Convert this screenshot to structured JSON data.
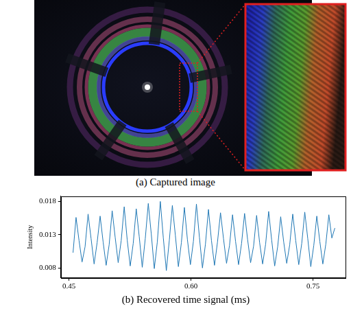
{
  "image": {
    "caption": "(a) Captured image"
  },
  "chart_data": {
    "type": "line",
    "title": "(b) Recovered time signal (ms)",
    "y_label": "Intensity",
    "x": [
      0.455,
      0.4587,
      0.4624,
      0.4661,
      0.4698,
      0.4735,
      0.4772,
      0.4809,
      0.4846,
      0.4883,
      0.492,
      0.4957,
      0.4994,
      0.5031,
      0.5068,
      0.5105,
      0.5142,
      0.5179,
      0.5216,
      0.5253,
      0.529,
      0.5327,
      0.5364,
      0.5401,
      0.5438,
      0.5475,
      0.5512,
      0.5549,
      0.5586,
      0.5623,
      0.566,
      0.5697,
      0.5734,
      0.5771,
      0.5808,
      0.5845,
      0.5882,
      0.5919,
      0.5956,
      0.5993,
      0.603,
      0.6067,
      0.6104,
      0.6141,
      0.6178,
      0.6215,
      0.6252,
      0.6289,
      0.6326,
      0.6363,
      0.64,
      0.6437,
      0.6474,
      0.6511,
      0.6548,
      0.6585,
      0.6622,
      0.6659,
      0.6696,
      0.6733,
      0.677,
      0.6807,
      0.6844,
      0.6881,
      0.6918,
      0.6955,
      0.6992,
      0.7029,
      0.7066,
      0.7103,
      0.714,
      0.7177,
      0.7214,
      0.7251,
      0.7288,
      0.7325,
      0.7362,
      0.7399,
      0.7436,
      0.7473,
      0.751,
      0.7547,
      0.7584,
      0.7621,
      0.7658,
      0.7695,
      0.7732,
      0.7769
    ],
    "values": [
      0.0103,
      0.0156,
      0.0121,
      0.0089,
      0.0112,
      0.0161,
      0.0124,
      0.0086,
      0.0118,
      0.0158,
      0.0119,
      0.0084,
      0.0115,
      0.0166,
      0.0126,
      0.0088,
      0.0121,
      0.0172,
      0.0122,
      0.0083,
      0.0117,
      0.0169,
      0.0127,
      0.0081,
      0.0124,
      0.0177,
      0.0131,
      0.0079,
      0.0119,
      0.018,
      0.0125,
      0.0076,
      0.0122,
      0.0174,
      0.0129,
      0.0082,
      0.0118,
      0.0171,
      0.0123,
      0.0085,
      0.012,
      0.0176,
      0.0126,
      0.008,
      0.0116,
      0.0168,
      0.0121,
      0.0084,
      0.0119,
      0.0163,
      0.0124,
      0.0087,
      0.0114,
      0.016,
      0.012,
      0.0085,
      0.0117,
      0.0162,
      0.0123,
      0.0088,
      0.0113,
      0.0159,
      0.0118,
      0.0086,
      0.0116,
      0.0165,
      0.0122,
      0.0083,
      0.0112,
      0.0157,
      0.0119,
      0.0087,
      0.0115,
      0.0161,
      0.0121,
      0.0085,
      0.0117,
      0.0164,
      0.0124,
      0.0082,
      0.0114,
      0.0158,
      0.012,
      0.0086,
      0.0116,
      0.016,
      0.0125,
      0.014
    ],
    "color": "#1f77b4",
    "xlim": [
      0.44,
      0.79
    ],
    "xticks": [
      0.45,
      {
        "value": 0.6,
        "label": "0.60"
      },
      0.75
    ],
    "ylim": [
      0.0065,
      0.0188
    ],
    "yticks": [
      0.008,
      0.013,
      0.018
    ],
    "grid": false
  }
}
